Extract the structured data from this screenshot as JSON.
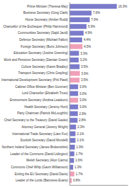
{
  "chart_data": {
    "type": "bar",
    "orientation": "horizontal",
    "categories": [
      "Prime Minister (Theresa May)",
      "Business Secretary (Greg Clark)",
      "Home Secretary (Amber Rudd)",
      "Chancellor of the Exchequer (Philip Hammond)",
      "Communities Secretary (Sajid Javid)",
      "Defence Secretary (Michael Fallon)",
      "Foreign Secretary (Boris Johnson)",
      "Education Secretary (Justine Greening)",
      "Work and Pensions Secretary (Damian Green)",
      "Culture Secretary (Karen Bradley)",
      "Transport Secretary (Chris Grayling)",
      "International Development Secretary (Priti Patel)",
      "Cabinet Office Minister (Ben Gummer)",
      "Lord Chancellor (Elizabeth Truss)",
      "Environment Secretary (Andrea Leadsom)",
      "Health Secretary (Jeremy Hunt)",
      "Party Chairman (Patrick McLoughlin)",
      "Chief Secretary to the Treasury (David Gauke)",
      "Attorney General (Jeremy Wright)",
      "International Trade Secretary (Liam Fox)",
      "Scottish Secretary (David Mundell)",
      "Northern Ireland Secretary (James Brokenshire)",
      "Leader of the Commons (David Lidington)",
      "Welsh Secretary (Alun Cairns)",
      "Commons Chief Whip (Gavin Williamson)",
      "Exiting the EU Secretary (David Davis)",
      "Leader of the Lords (Baroness Evans)"
    ],
    "values": [
      16.3,
      7.6,
      7.0,
      5.9,
      4.9,
      4.4,
      4.5,
      3.3,
      3.2,
      3.5,
      3.6,
      3.5,
      3.0,
      3.0,
      3.0,
      3.0,
      2.9,
      2.8,
      2.3,
      2.1,
      2.1,
      1.9,
      1.7,
      1.6,
      1.3,
      1.7,
      0.8
    ],
    "value_labels": [
      "16.3%",
      "7.6%",
      "7.0%",
      "5.9%",
      "4.9%",
      "4.4%",
      "4.5%",
      "3.3%",
      "3.2%",
      "3.5%",
      "3.6%",
      "3.5%",
      "3.0%",
      "3.0%",
      "3.0%",
      "3.0%",
      "2.9%",
      "2.8%",
      "2.3%",
      "2.1%",
      "2.1%",
      "1.9%",
      "1.7%",
      "1.6%",
      "1.3%",
      "1.7%",
      "0.8%"
    ],
    "colors": [
      "#7b7bcb",
      "#7b7bcb",
      "#7b7bcb",
      "#7b7bcb",
      "#7b7bcb",
      "#7b7bcb",
      "#f0a0b8",
      "#7b7bcb",
      "#7b7bcb",
      "#7b7bcb",
      "#f0a0b8",
      "#f0a0b8",
      "#7b7bcb",
      "#7b7bcb",
      "#f0a0b8",
      "#7b7bcb",
      "#7b7bcb",
      "#7b7bcb",
      "#7b7bcb",
      "#7b7bcb",
      "#7b7bcb",
      "#7b7bcb",
      "#7b7bcb",
      "#7b7bcb",
      "#7b7bcb",
      "#f0a0b8",
      "#f0a0b8"
    ],
    "data_labels": true,
    "xlim": [
      0,
      20
    ],
    "tick_labels": "y",
    "grid": false
  }
}
